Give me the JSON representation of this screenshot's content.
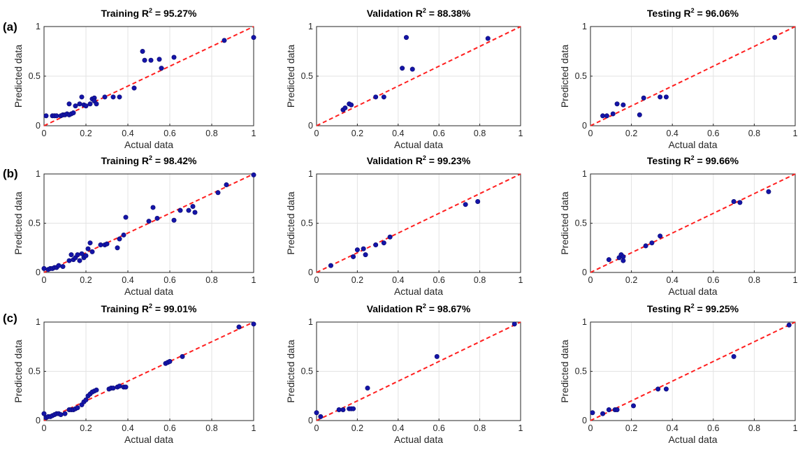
{
  "figure": {
    "row_labels": [
      "(a)",
      "(b)",
      "(c)"
    ]
  },
  "chart_data": [
    {
      "row": "(a)",
      "type": "scatter",
      "title_prefix": "Training R",
      "title_sup": "2",
      "title_suffix": " = 95.27%",
      "xlabel": "Actual data",
      "ylabel": "Predicted data",
      "xlim": [
        0,
        1
      ],
      "ylim": [
        0,
        1
      ],
      "xticks": [
        0,
        0.2,
        0.4,
        0.6,
        0.8,
        1
      ],
      "yticks": [
        0,
        0.5,
        1
      ],
      "xtick_labels": [
        "0",
        "0.2",
        "0.4",
        "0.6",
        "0.8",
        "1"
      ],
      "ytick_labels": [
        "0",
        "0.5",
        "1"
      ],
      "grid": true,
      "reference_line": [
        [
          0,
          0
        ],
        [
          1,
          1
        ]
      ],
      "points": [
        [
          0.01,
          0.1
        ],
        [
          0.04,
          0.1
        ],
        [
          0.05,
          0.1
        ],
        [
          0.06,
          0.1
        ],
        [
          0.08,
          0.1
        ],
        [
          0.09,
          0.11
        ],
        [
          0.1,
          0.11
        ],
        [
          0.11,
          0.12
        ],
        [
          0.12,
          0.11
        ],
        [
          0.13,
          0.12
        ],
        [
          0.14,
          0.13
        ],
        [
          0.12,
          0.22
        ],
        [
          0.15,
          0.2
        ],
        [
          0.17,
          0.22
        ],
        [
          0.18,
          0.29
        ],
        [
          0.19,
          0.21
        ],
        [
          0.2,
          0.2
        ],
        [
          0.22,
          0.22
        ],
        [
          0.23,
          0.27
        ],
        [
          0.24,
          0.28
        ],
        [
          0.24,
          0.25
        ],
        [
          0.25,
          0.22
        ],
        [
          0.29,
          0.29
        ],
        [
          0.33,
          0.29
        ],
        [
          0.36,
          0.29
        ],
        [
          0.43,
          0.38
        ],
        [
          0.47,
          0.75
        ],
        [
          0.48,
          0.66
        ],
        [
          0.51,
          0.66
        ],
        [
          0.55,
          0.67
        ],
        [
          0.56,
          0.58
        ],
        [
          0.62,
          0.69
        ],
        [
          0.86,
          0.86
        ],
        [
          1.0,
          0.89
        ]
      ]
    },
    {
      "row": "(a)",
      "type": "scatter",
      "title_prefix": "Validation R",
      "title_sup": "2",
      "title_suffix": " = 88.38%",
      "xlabel": "Actual data",
      "ylabel": "Predicted data",
      "xlim": [
        0,
        1
      ],
      "ylim": [
        0,
        1
      ],
      "xticks": [
        0,
        0.2,
        0.4,
        0.6,
        0.8,
        1
      ],
      "yticks": [
        0,
        0.5,
        1
      ],
      "xtick_labels": [
        "0",
        "0.2",
        "0.4",
        "0.6",
        "0.8",
        "1"
      ],
      "ytick_labels": [
        "0",
        "0.5",
        "1"
      ],
      "grid": true,
      "reference_line": [
        [
          0,
          0
        ],
        [
          1,
          1
        ]
      ],
      "points": [
        [
          0.13,
          0.16
        ],
        [
          0.14,
          0.18
        ],
        [
          0.16,
          0.22
        ],
        [
          0.17,
          0.21
        ],
        [
          0.29,
          0.29
        ],
        [
          0.33,
          0.29
        ],
        [
          0.42,
          0.58
        ],
        [
          0.44,
          0.89
        ],
        [
          0.47,
          0.57
        ],
        [
          0.84,
          0.88
        ]
      ]
    },
    {
      "row": "(a)",
      "type": "scatter",
      "title_prefix": "Testing R",
      "title_sup": "2",
      "title_suffix": " = 96.06%",
      "xlabel": "Actual data",
      "ylabel": "Predicted data",
      "xlim": [
        0,
        1
      ],
      "ylim": [
        0,
        1
      ],
      "xticks": [
        0,
        0.2,
        0.4,
        0.6,
        0.8,
        1
      ],
      "yticks": [
        0,
        0.5,
        1
      ],
      "xtick_labels": [
        "0",
        "0.2",
        "0.4",
        "0.6",
        "0.8",
        "1"
      ],
      "ytick_labels": [
        "0",
        "0.5",
        "1"
      ],
      "grid": true,
      "reference_line": [
        [
          0,
          0
        ],
        [
          1,
          1
        ]
      ],
      "points": [
        [
          0.06,
          0.1
        ],
        [
          0.08,
          0.1
        ],
        [
          0.11,
          0.12
        ],
        [
          0.13,
          0.22
        ],
        [
          0.16,
          0.21
        ],
        [
          0.24,
          0.11
        ],
        [
          0.26,
          0.28
        ],
        [
          0.34,
          0.29
        ],
        [
          0.37,
          0.29
        ],
        [
          0.9,
          0.89
        ]
      ]
    },
    {
      "row": "(b)",
      "type": "scatter",
      "title_prefix": "Training R",
      "title_sup": "2",
      "title_suffix": " = 98.42%",
      "xlabel": "Actual data",
      "ylabel": "Predicted data",
      "xlim": [
        0,
        1
      ],
      "ylim": [
        0,
        1
      ],
      "xticks": [
        0,
        0.2,
        0.4,
        0.6,
        0.8,
        1
      ],
      "yticks": [
        0,
        0.5,
        1
      ],
      "xtick_labels": [
        "0",
        "0.2",
        "0.4",
        "0.6",
        "0.8",
        "1"
      ],
      "ytick_labels": [
        "0",
        "0.5",
        "1"
      ],
      "grid": true,
      "reference_line": [
        [
          0,
          0
        ],
        [
          1,
          1
        ]
      ],
      "points": [
        [
          0.0,
          0.04
        ],
        [
          0.02,
          0.03
        ],
        [
          0.03,
          0.04
        ],
        [
          0.04,
          0.04
        ],
        [
          0.05,
          0.05
        ],
        [
          0.06,
          0.05
        ],
        [
          0.07,
          0.07
        ],
        [
          0.09,
          0.06
        ],
        [
          0.12,
          0.12
        ],
        [
          0.13,
          0.18
        ],
        [
          0.14,
          0.13
        ],
        [
          0.15,
          0.15
        ],
        [
          0.16,
          0.18
        ],
        [
          0.17,
          0.12
        ],
        [
          0.18,
          0.19
        ],
        [
          0.19,
          0.15
        ],
        [
          0.2,
          0.17
        ],
        [
          0.21,
          0.24
        ],
        [
          0.22,
          0.3
        ],
        [
          0.23,
          0.21
        ],
        [
          0.27,
          0.28
        ],
        [
          0.29,
          0.28
        ],
        [
          0.3,
          0.29
        ],
        [
          0.35,
          0.25
        ],
        [
          0.36,
          0.34
        ],
        [
          0.38,
          0.38
        ],
        [
          0.39,
          0.56
        ],
        [
          0.5,
          0.52
        ],
        [
          0.52,
          0.66
        ],
        [
          0.54,
          0.55
        ],
        [
          0.62,
          0.53
        ],
        [
          0.65,
          0.63
        ],
        [
          0.69,
          0.63
        ],
        [
          0.71,
          0.67
        ],
        [
          0.72,
          0.61
        ],
        [
          0.83,
          0.81
        ],
        [
          0.87,
          0.89
        ],
        [
          1.0,
          0.99
        ]
      ]
    },
    {
      "row": "(b)",
      "type": "scatter",
      "title_prefix": "Validation R",
      "title_sup": "2",
      "title_suffix": " = 99.23%",
      "xlabel": "Actual data",
      "ylabel": "Predicted data",
      "xlim": [
        0,
        1
      ],
      "ylim": [
        0,
        1
      ],
      "xticks": [
        0,
        0.2,
        0.4,
        0.6,
        0.8,
        1
      ],
      "yticks": [
        0,
        0.5,
        1
      ],
      "xtick_labels": [
        "0",
        "0.2",
        "0.4",
        "0.6",
        "0.8",
        "1"
      ],
      "ytick_labels": [
        "0",
        "0.5",
        "1"
      ],
      "grid": true,
      "reference_line": [
        [
          0,
          0
        ],
        [
          1,
          1
        ]
      ],
      "points": [
        [
          0.07,
          0.07
        ],
        [
          0.18,
          0.16
        ],
        [
          0.2,
          0.23
        ],
        [
          0.23,
          0.24
        ],
        [
          0.24,
          0.18
        ],
        [
          0.29,
          0.28
        ],
        [
          0.33,
          0.3
        ],
        [
          0.36,
          0.36
        ],
        [
          0.73,
          0.69
        ],
        [
          0.79,
          0.72
        ]
      ]
    },
    {
      "row": "(b)",
      "type": "scatter",
      "title_prefix": "Testing R",
      "title_sup": "2",
      "title_suffix": " = 99.66%",
      "xlabel": "Actual data",
      "ylabel": "Predicted data",
      "xlim": [
        0,
        1
      ],
      "ylim": [
        0,
        1
      ],
      "xticks": [
        0,
        0.2,
        0.4,
        0.6,
        0.8,
        1
      ],
      "yticks": [
        0,
        0.5,
        1
      ],
      "xtick_labels": [
        "0",
        "0.2",
        "0.4",
        "0.6",
        "0.8",
        "1"
      ],
      "ytick_labels": [
        "0",
        "0.5",
        "1"
      ],
      "grid": true,
      "reference_line": [
        [
          0,
          0
        ],
        [
          1,
          1
        ]
      ],
      "points": [
        [
          0.09,
          0.13
        ],
        [
          0.14,
          0.15
        ],
        [
          0.15,
          0.18
        ],
        [
          0.16,
          0.16
        ],
        [
          0.16,
          0.12
        ],
        [
          0.27,
          0.27
        ],
        [
          0.3,
          0.3
        ],
        [
          0.34,
          0.37
        ],
        [
          0.7,
          0.72
        ],
        [
          0.73,
          0.71
        ],
        [
          0.87,
          0.82
        ]
      ]
    },
    {
      "row": "(c)",
      "type": "scatter",
      "title_prefix": "Training R",
      "title_sup": "2",
      "title_suffix": " = 99.01%",
      "xlabel": "Actual data",
      "ylabel": "Predicted data",
      "xlim": [
        0,
        1
      ],
      "ylim": [
        0,
        1
      ],
      "xticks": [
        0,
        0.2,
        0.4,
        0.6,
        0.8,
        1
      ],
      "yticks": [
        0,
        0.5,
        1
      ],
      "xtick_labels": [
        "0",
        "0.2",
        "0.4",
        "0.6",
        "0.8",
        "1"
      ],
      "ytick_labels": [
        "0",
        "0.5",
        "1"
      ],
      "grid": true,
      "reference_line": [
        [
          0,
          0
        ],
        [
          1,
          1
        ]
      ],
      "points": [
        [
          0.0,
          0.07
        ],
        [
          0.01,
          0.03
        ],
        [
          0.02,
          0.04
        ],
        [
          0.03,
          0.04
        ],
        [
          0.04,
          0.05
        ],
        [
          0.05,
          0.06
        ],
        [
          0.06,
          0.07
        ],
        [
          0.07,
          0.07
        ],
        [
          0.08,
          0.06
        ],
        [
          0.1,
          0.07
        ],
        [
          0.12,
          0.11
        ],
        [
          0.13,
          0.11
        ],
        [
          0.14,
          0.11
        ],
        [
          0.15,
          0.12
        ],
        [
          0.16,
          0.13
        ],
        [
          0.18,
          0.16
        ],
        [
          0.19,
          0.19
        ],
        [
          0.2,
          0.21
        ],
        [
          0.21,
          0.25
        ],
        [
          0.22,
          0.27
        ],
        [
          0.23,
          0.29
        ],
        [
          0.24,
          0.3
        ],
        [
          0.25,
          0.31
        ],
        [
          0.31,
          0.32
        ],
        [
          0.32,
          0.33
        ],
        [
          0.33,
          0.33
        ],
        [
          0.35,
          0.34
        ],
        [
          0.36,
          0.35
        ],
        [
          0.38,
          0.34
        ],
        [
          0.39,
          0.34
        ],
        [
          0.58,
          0.58
        ],
        [
          0.59,
          0.59
        ],
        [
          0.6,
          0.6
        ],
        [
          0.66,
          0.65
        ],
        [
          0.93,
          0.95
        ],
        [
          1.0,
          0.98
        ]
      ]
    },
    {
      "row": "(c)",
      "type": "scatter",
      "title_prefix": "Validation R",
      "title_sup": "2",
      "title_suffix": " = 98.67%",
      "xlabel": "Actual data",
      "ylabel": "Predicted data",
      "xlim": [
        0,
        1
      ],
      "ylim": [
        0,
        1
      ],
      "xticks": [
        0,
        0.2,
        0.4,
        0.6,
        0.8,
        1
      ],
      "yticks": [
        0,
        0.5,
        1
      ],
      "xtick_labels": [
        "0",
        "0.2",
        "0.4",
        "0.6",
        "0.8",
        "1"
      ],
      "ytick_labels": [
        "0",
        "0.5",
        "1"
      ],
      "grid": true,
      "reference_line": [
        [
          0,
          0
        ],
        [
          1,
          1
        ]
      ],
      "points": [
        [
          0.0,
          0.08
        ],
        [
          0.02,
          0.04
        ],
        [
          0.11,
          0.11
        ],
        [
          0.13,
          0.11
        ],
        [
          0.16,
          0.12
        ],
        [
          0.17,
          0.12
        ],
        [
          0.18,
          0.12
        ],
        [
          0.25,
          0.33
        ],
        [
          0.59,
          0.65
        ],
        [
          0.97,
          0.98
        ]
      ]
    },
    {
      "row": "(c)",
      "type": "scatter",
      "title_prefix": "Testing R",
      "title_sup": "2",
      "title_suffix": " = 99.25%",
      "xlabel": "Actual data",
      "ylabel": "Predicted data",
      "xlim": [
        0,
        1
      ],
      "ylim": [
        0,
        1
      ],
      "xticks": [
        0,
        0.2,
        0.4,
        0.6,
        0.8,
        1
      ],
      "yticks": [
        0,
        0.5,
        1
      ],
      "xtick_labels": [
        "0",
        "0.2",
        "0.4",
        "0.6",
        "0.8",
        "1"
      ],
      "ytick_labels": [
        "0",
        "0.5",
        "1"
      ],
      "grid": true,
      "reference_line": [
        [
          0,
          0
        ],
        [
          1,
          1
        ]
      ],
      "points": [
        [
          0.01,
          0.08
        ],
        [
          0.06,
          0.07
        ],
        [
          0.09,
          0.11
        ],
        [
          0.12,
          0.11
        ],
        [
          0.13,
          0.11
        ],
        [
          0.21,
          0.15
        ],
        [
          0.33,
          0.32
        ],
        [
          0.37,
          0.32
        ],
        [
          0.7,
          0.65
        ],
        [
          0.97,
          0.97
        ]
      ]
    }
  ],
  "colors": {
    "marker_fill": "#1414a8",
    "marker_edge": "#0b0b6e",
    "reference_line": "#ff1f1f",
    "grid": "#e3e3e3",
    "axes": "#262626"
  }
}
